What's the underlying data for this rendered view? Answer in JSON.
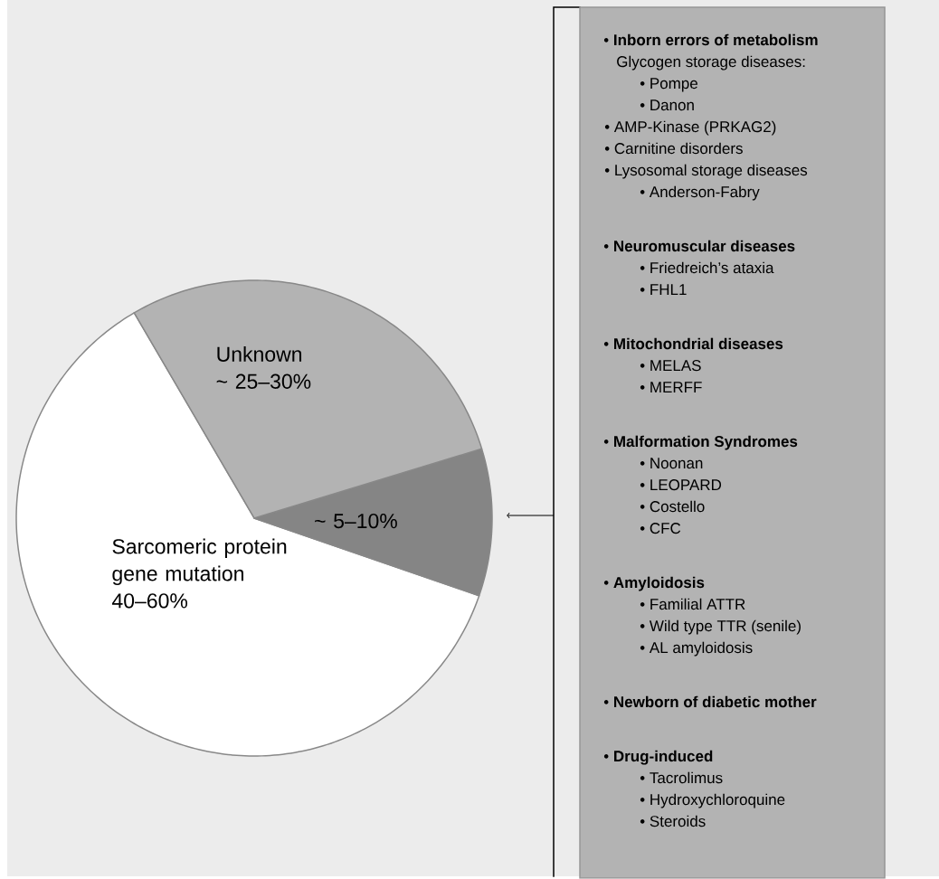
{
  "chart_data": [
    {
      "type": "pie",
      "categories": [
        "Sarcomeric protein gene mutation",
        null,
        "Unknown"
      ],
      "values": [
        61.3,
        10.0,
        28.7
      ],
      "colors": [
        "#ffffff",
        "#858585",
        "#b3b3b3"
      ],
      "annotations": [
        "40–60%",
        "~ 5–10%",
        "~ 25–30%"
      ]
    },
    {
      "type": "other",
      "annotations": [
        "• **Inborn errors of metabolism**",
        "Glycogen storage diseases:",
        "• Pompe",
        "• Danon",
        "• AMP-Kinase (PRKAG2)",
        "• Carnitine disorders",
        "• Lysosomal storage diseases",
        "• Anderson-Fabry",
        "• **Neuromuscular diseases**",
        "• Friedreich’s ataxia",
        "• FHL1",
        "• **Mitochondrial diseases**",
        "• MELAS",
        "• MERFF",
        "• **Malformation Syndromes**",
        "• Noonan",
        "• LEOPARD",
        "• Costello",
        "• CFC",
        "• **Amyloidosis**",
        "• Familial ATTR",
        "• Wild type TTR (senile)",
        "• AL amyloidosis",
        "• **Newborn of diabetic mother**",
        "• **Drug-induced**",
        "• Tacrolimus",
        "• Hydroxychloroquine",
        "• Steroids"
      ]
    }
  ]
}
